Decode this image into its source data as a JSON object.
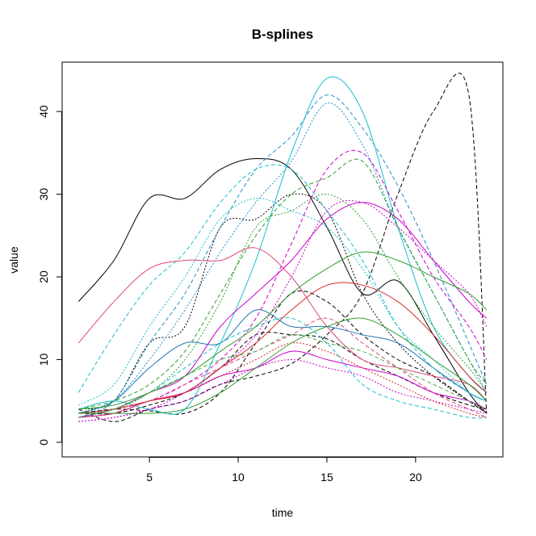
{
  "chart_data": {
    "type": "line",
    "title": "B-splines",
    "xlabel": "time",
    "ylabel": "value",
    "xlim": [
      0,
      25
    ],
    "ylim": [
      0,
      45
    ],
    "x_ticks": [
      5,
      10,
      15,
      20
    ],
    "y_ticks": [
      0,
      10,
      20,
      30,
      40
    ],
    "grid": false,
    "x": [
      1,
      3,
      5,
      7,
      9,
      11,
      13,
      15,
      17,
      19,
      21,
      23,
      24
    ],
    "series": [
      {
        "color": "#000000",
        "dash": "solid",
        "values": [
          17,
          22,
          29.5,
          29.5,
          33,
          34.3,
          33,
          26,
          18,
          19.5,
          13,
          6,
          3.5
        ]
      },
      {
        "color": "#000000",
        "dash": "dashed",
        "values": [
          3.5,
          4,
          3.8,
          3.5,
          6,
          12,
          18,
          17,
          13,
          10,
          8,
          5,
          3.5
        ]
      },
      {
        "color": "#000000",
        "dash": "dashed",
        "values": [
          4,
          2.5,
          4,
          5,
          7,
          8,
          9.5,
          13,
          18,
          30,
          40,
          42,
          3.5
        ]
      },
      {
        "color": "#000000",
        "dash": "dotted",
        "values": [
          4,
          5,
          12,
          14,
          26,
          27,
          30,
          28,
          18,
          12,
          8,
          5,
          4
        ]
      },
      {
        "color": "#000000",
        "dash": "dashed",
        "values": [
          3.5,
          3.5,
          4.5,
          6,
          9,
          13,
          13,
          12.5,
          10,
          8,
          6,
          4.5,
          4
        ]
      },
      {
        "color": "#1f77b4",
        "dash": "solid",
        "values": [
          3.5,
          5,
          9,
          12,
          12,
          16,
          14,
          14,
          13,
          12,
          9,
          6,
          5
        ]
      },
      {
        "color": "#1f8fc8",
        "dash": "dashed",
        "values": [
          3,
          5,
          12,
          18,
          26,
          33,
          37,
          42,
          38,
          31,
          22,
          12,
          7
        ]
      },
      {
        "color": "#1f8fc8",
        "dash": "dotted",
        "values": [
          3.5,
          5,
          10,
          16,
          23,
          29,
          34,
          41,
          36,
          26,
          18,
          10,
          6
        ]
      },
      {
        "color": "#17becf",
        "dash": "solid",
        "values": [
          4,
          5,
          4,
          4,
          12,
          22,
          35,
          44,
          40,
          26,
          14,
          8,
          6
        ]
      },
      {
        "color": "#17becf",
        "dash": "dashed",
        "values": [
          6,
          13,
          19,
          23,
          29,
          33,
          33,
          28,
          22,
          14,
          9,
          6,
          5
        ]
      },
      {
        "color": "#17becf",
        "dash": "dotted",
        "values": [
          4.5,
          7,
          14,
          20,
          27,
          29.5,
          28,
          26,
          21,
          14,
          10,
          6,
          5
        ]
      },
      {
        "color": "#17becf",
        "dash": "dashed",
        "values": [
          3,
          4,
          6,
          9,
          12,
          14,
          15,
          12,
          7,
          5,
          4,
          3,
          3
        ]
      },
      {
        "color": "#cc00cc",
        "dash": "solid",
        "values": [
          3,
          4,
          6,
          8,
          14,
          18,
          22,
          27,
          29,
          27,
          22,
          17,
          15
        ]
      },
      {
        "color": "#cc00cc",
        "dash": "dashed",
        "values": [
          3,
          4,
          5,
          7,
          10,
          15,
          24,
          33,
          35,
          28,
          20,
          14,
          10
        ]
      },
      {
        "color": "#cc00cc",
        "dash": "dotted",
        "values": [
          2.5,
          3,
          4,
          6,
          9,
          13,
          20,
          28,
          29,
          26,
          22,
          18,
          14
        ]
      },
      {
        "color": "#cc00cc",
        "dash": "solid",
        "values": [
          3,
          3.5,
          5,
          6,
          8,
          9,
          11,
          10,
          9,
          8,
          6,
          5,
          4
        ]
      },
      {
        "color": "#cc00cc",
        "dash": "dotted",
        "values": [
          2.5,
          3,
          4,
          5,
          7,
          9,
          10,
          9,
          8,
          6,
          5,
          4,
          3.5
        ]
      },
      {
        "color": "#e0457b",
        "dash": "solid",
        "values": [
          12,
          17,
          21,
          22,
          22,
          23.5,
          20,
          14,
          10,
          9,
          8,
          7,
          5
        ]
      },
      {
        "color": "#e0457b",
        "dash": "dashed",
        "values": [
          3.5,
          4,
          5,
          7,
          9,
          11,
          13,
          15,
          12,
          9,
          6,
          4,
          3
        ]
      },
      {
        "color": "#d62728",
        "dash": "solid",
        "values": [
          3.5,
          4,
          5,
          6,
          9,
          12,
          16,
          19,
          19,
          17,
          13,
          8,
          6
        ]
      },
      {
        "color": "#d62728",
        "dash": "dotted",
        "values": [
          3,
          3.5,
          5,
          6,
          8,
          10,
          12,
          11,
          9,
          7,
          5,
          3.5,
          3
        ]
      },
      {
        "color": "#2ca02c",
        "dash": "solid",
        "values": [
          4,
          4.5,
          6,
          8,
          11,
          14,
          18,
          21,
          23,
          22,
          20,
          18,
          16
        ]
      },
      {
        "color": "#2ca02c",
        "dash": "dashed",
        "values": [
          4,
          5,
          7,
          11,
          18,
          25,
          30,
          32,
          34,
          26,
          18,
          10,
          7
        ]
      },
      {
        "color": "#2ca02c",
        "dash": "dotted",
        "values": [
          3.5,
          4,
          6,
          10,
          17,
          26,
          28,
          30,
          27,
          20,
          14,
          9,
          6
        ]
      },
      {
        "color": "#2ca02c",
        "dash": "solid",
        "values": [
          3.5,
          3.5,
          3.5,
          4,
          6,
          9,
          12,
          14,
          15,
          13,
          10,
          7,
          5
        ]
      },
      {
        "color": "#4daf4a",
        "dash": "dashed",
        "values": [
          3,
          4,
          6,
          8,
          10,
          11,
          13,
          12,
          11,
          9,
          7,
          5,
          4
        ]
      }
    ]
  }
}
